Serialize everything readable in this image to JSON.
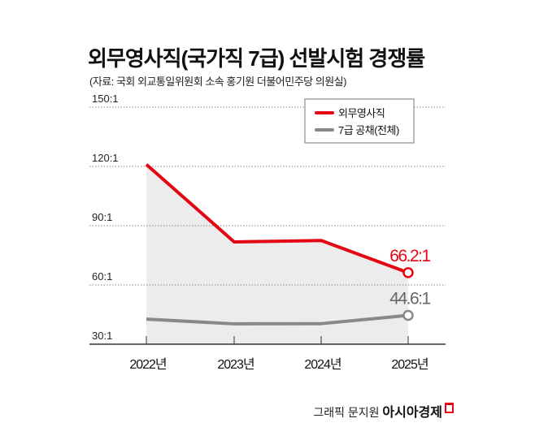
{
  "title": "외무영사직(국가직 7급) 선발시험 경쟁률",
  "subtitle": "(자료: 국회 외교통일위원회 소속 홍기원 더불어민주당 의원실)",
  "credit": {
    "author": "그래픽 문지원",
    "brand": "아시아경제"
  },
  "chart_data": {
    "type": "line",
    "title": "외무영사직(국가직 7급) 선발시험 경쟁률",
    "categories": [
      "2022년",
      "2023년",
      "2024년",
      "2025년"
    ],
    "y_ticks": [
      30,
      60,
      90,
      120,
      150
    ],
    "y_tick_labels": [
      "30:1",
      "60:1",
      "90:1",
      "120:1",
      "150:1"
    ],
    "ylim": [
      30,
      150
    ],
    "grid": "horizontal dotted",
    "legend": "top-right",
    "series": [
      {
        "name": "외무영사직",
        "color": "#e30613",
        "values": [
          121.0,
          81.8,
          82.5,
          66.2
        ],
        "end_label": "66.2:1",
        "area_fill": "#ececec"
      },
      {
        "name": "7급 공채(전체)",
        "color": "#888888",
        "values": [
          42.7,
          40.3,
          40.4,
          44.6
        ],
        "end_label": "44.6:1",
        "label_color": "#666666"
      }
    ]
  }
}
